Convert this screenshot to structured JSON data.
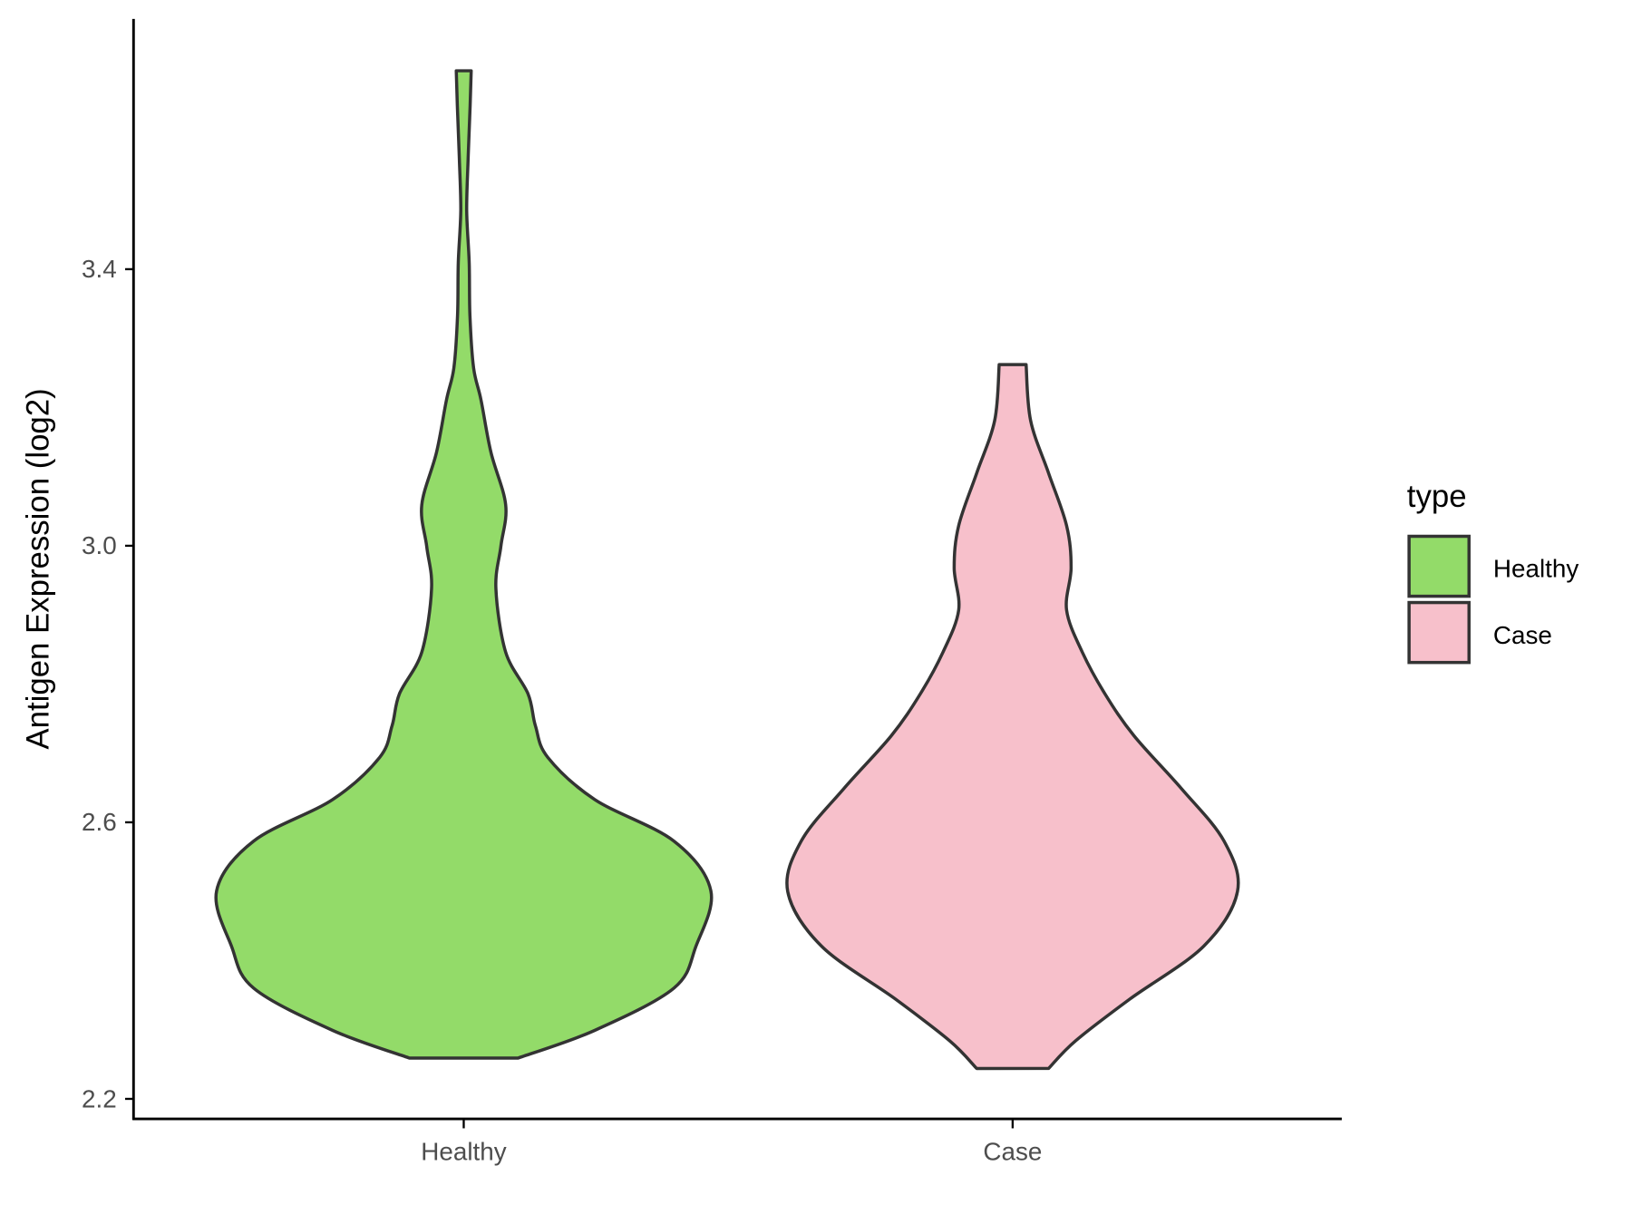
{
  "chart_data": {
    "type": "violin",
    "title": "",
    "xlabel": "",
    "ylabel": "Antigen Expression (log2)",
    "ylim": [
      2.18,
      3.75
    ],
    "yticks": [
      2.2,
      2.6,
      3.0,
      3.4
    ],
    "ytick_labels": [
      "2.2",
      "2.6",
      "3.0",
      "3.4"
    ],
    "categories": [
      "Healthy",
      "Case"
    ],
    "legend": {
      "title": "type",
      "position": "right",
      "entries": [
        "Healthy",
        "Case"
      ]
    },
    "series": [
      {
        "name": "Healthy",
        "color": "#93DB69",
        "relative_max_width": 1.0,
        "range": [
          2.259,
          3.687
        ],
        "density_profile": {
          "y": [
            2.259,
            2.299,
            2.36,
            2.421,
            2.501,
            2.573,
            2.633,
            2.694,
            2.74,
            2.786,
            2.846,
            2.938,
            2.999,
            3.059,
            3.135,
            3.211,
            3.257,
            3.333,
            3.409,
            3.485,
            3.561,
            3.637,
            3.687
          ],
          "relative_width": [
            0.22,
            0.53,
            0.85,
            0.94,
            1,
            0.85,
            0.53,
            0.34,
            0.29,
            0.26,
            0.17,
            0.13,
            0.15,
            0.17,
            0.11,
            0.07,
            0.04,
            0.025,
            0.022,
            0.012,
            0.018,
            0.026,
            0.03
          ]
        }
      },
      {
        "name": "Case",
        "color": "#F7C0CB",
        "relative_max_width": 0.91,
        "range": [
          2.244,
          3.262
        ],
        "density_profile": {
          "y": [
            2.244,
            2.284,
            2.344,
            2.421,
            2.5,
            2.573,
            2.649,
            2.725,
            2.786,
            2.846,
            2.907,
            2.968,
            3.029,
            3.105,
            3.181,
            3.262
          ],
          "relative_width": [
            0.16,
            0.28,
            0.52,
            0.85,
            1,
            0.94,
            0.75,
            0.54,
            0.41,
            0.31,
            0.24,
            0.26,
            0.24,
            0.16,
            0.08,
            0.06
          ]
        }
      }
    ]
  }
}
